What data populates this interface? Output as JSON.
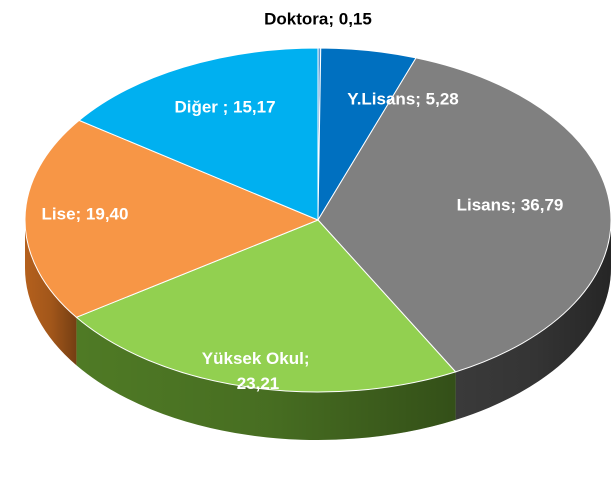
{
  "chart_data": {
    "type": "pie3d",
    "values": [
      0.15,
      5.28,
      36.79,
      23.21,
      19.4,
      15.17
    ],
    "value_labels": [
      "Doktora; 0,15",
      "Y.Lisans; 5,28",
      "Lisans; 36,79",
      "Yüksek Okul; 23,21",
      "Lise; 19,40",
      "Diğer ; 15,17"
    ],
    "colors": [
      "#5b9bd5",
      "#0070c0",
      "#808080",
      "#92d050",
      "#f79646",
      "#00b0f0"
    ],
    "side_colors": [
      "#2e6da4",
      "#004c86",
      "#3a3a3a",
      "#4f7a25",
      "#b4601d",
      "#007fb0"
    ]
  }
}
